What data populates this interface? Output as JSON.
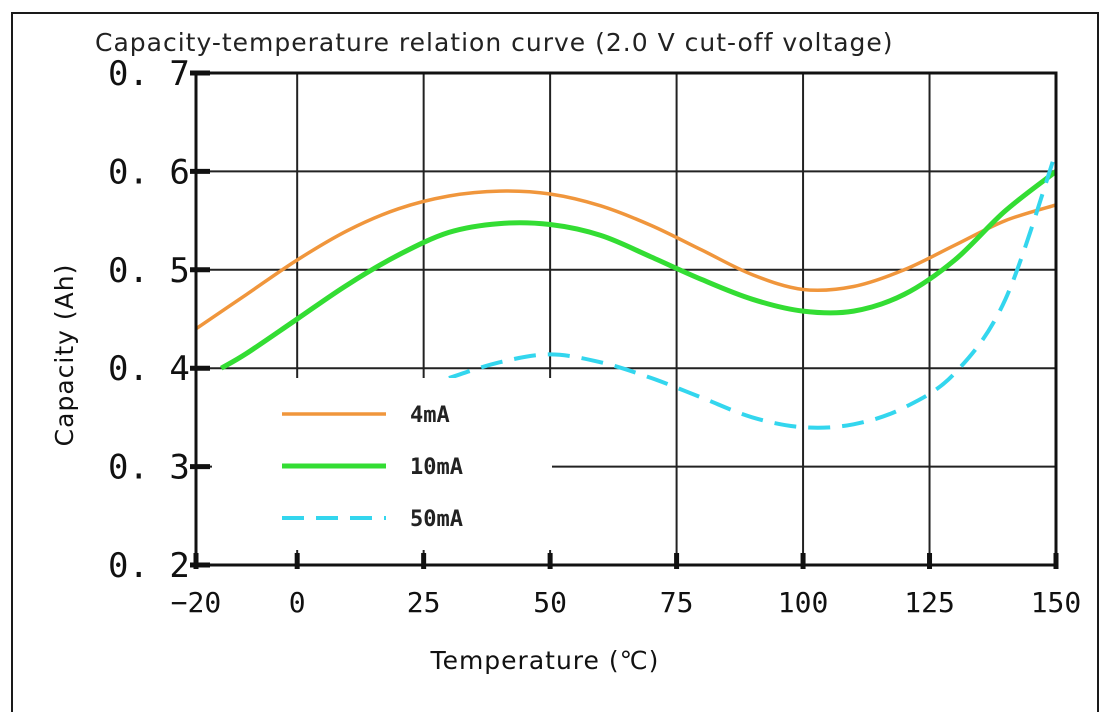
{
  "chart_data": {
    "type": "line",
    "title": "Capacity-temperature relation curve (2.0 V cut-off voltage)",
    "xlabel": "Temperature (℃)",
    "ylabel": "Capacity (Ah)",
    "xlim": [
      -20,
      150
    ],
    "ylim": [
      0.2,
      0.7
    ],
    "x_ticks": [
      -20,
      0,
      25,
      50,
      75,
      100,
      125,
      150
    ],
    "x_tick_labels": [
      "−20",
      "0",
      "25",
      "50",
      "75",
      "100",
      "125",
      "150"
    ],
    "y_ticks": [
      0.2,
      0.3,
      0.4,
      0.5,
      0.6,
      0.7
    ],
    "y_tick_labels": [
      "0. 2",
      "0. 3",
      "0. 4",
      "0. 5",
      "0. 6",
      "0. 7"
    ],
    "grid": true,
    "legend_position": "lower-left",
    "series": [
      {
        "name": "4mA",
        "color": "#f0963c",
        "dash": "solid",
        "x": [
          -20,
          -10,
          0,
          10,
          20,
          30,
          40,
          50,
          60,
          70,
          80,
          90,
          100,
          110,
          120,
          130,
          140,
          150
        ],
        "y": [
          0.44,
          0.475,
          0.51,
          0.54,
          0.562,
          0.575,
          0.58,
          0.577,
          0.565,
          0.545,
          0.52,
          0.495,
          0.48,
          0.483,
          0.5,
          0.525,
          0.55,
          0.566
        ]
      },
      {
        "name": "10mA",
        "color": "#33dd33",
        "dash": "solid",
        "x": [
          -15,
          -10,
          0,
          10,
          20,
          30,
          40,
          50,
          60,
          70,
          80,
          90,
          100,
          110,
          120,
          130,
          140,
          150
        ],
        "y": [
          0.4,
          0.415,
          0.45,
          0.485,
          0.515,
          0.538,
          0.547,
          0.546,
          0.535,
          0.513,
          0.49,
          0.47,
          0.458,
          0.458,
          0.475,
          0.51,
          0.56,
          0.6
        ]
      },
      {
        "name": "50mA",
        "color": "#33d6ee",
        "dash": "dashed",
        "x": [
          30,
          40,
          50,
          60,
          70,
          80,
          90,
          100,
          110,
          120,
          130,
          140,
          150
        ],
        "y": [
          0.39,
          0.406,
          0.414,
          0.406,
          0.39,
          0.37,
          0.35,
          0.34,
          0.343,
          0.36,
          0.395,
          0.47,
          0.62
        ]
      }
    ]
  }
}
